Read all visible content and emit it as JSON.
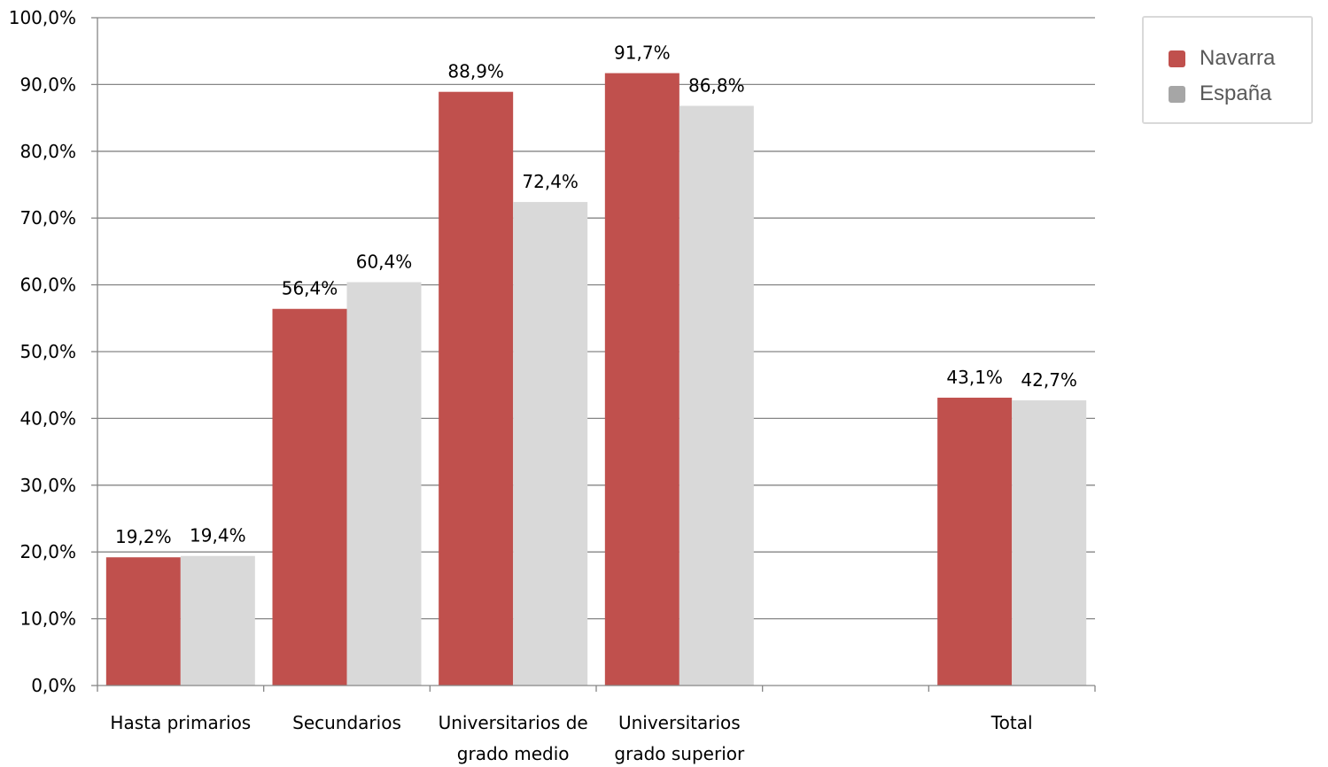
{
  "chart_data": {
    "type": "bar",
    "categories": [
      [
        "Hasta primarios"
      ],
      [
        "Secundarios"
      ],
      [
        "Universitarios de",
        "grado medio"
      ],
      [
        "Universitarios",
        "grado superior"
      ],
      [
        ""
      ],
      [
        "Total"
      ]
    ],
    "series": [
      {
        "name": "Navarra",
        "color": "#c0504d",
        "values": [
          19.2,
          56.4,
          88.9,
          91.7,
          null,
          43.1
        ],
        "labels": [
          "19,2%",
          "56,4%",
          "88,9%",
          "91,7%",
          "",
          "43,1%"
        ]
      },
      {
        "name": "España",
        "color": "#d9d9d9",
        "values": [
          19.4,
          60.4,
          72.4,
          86.8,
          null,
          42.7
        ],
        "labels": [
          "19,4%",
          "60,4%",
          "72,4%",
          "86,8%",
          "",
          "42,7%"
        ]
      }
    ],
    "ylim": [
      0,
      100
    ],
    "yticks": [
      0,
      10,
      20,
      30,
      40,
      50,
      60,
      70,
      80,
      90,
      100
    ],
    "ytick_labels": [
      "0,0%",
      "10,0%",
      "20,0%",
      "30,0%",
      "40,0%",
      "50,0%",
      "60,0%",
      "70,0%",
      "80,0%",
      "90,0%",
      "100,0%"
    ],
    "grid": true,
    "legend_position": "top-right",
    "legend_swatch_colors": [
      "#c0504d",
      "#a6a6a6"
    ]
  }
}
